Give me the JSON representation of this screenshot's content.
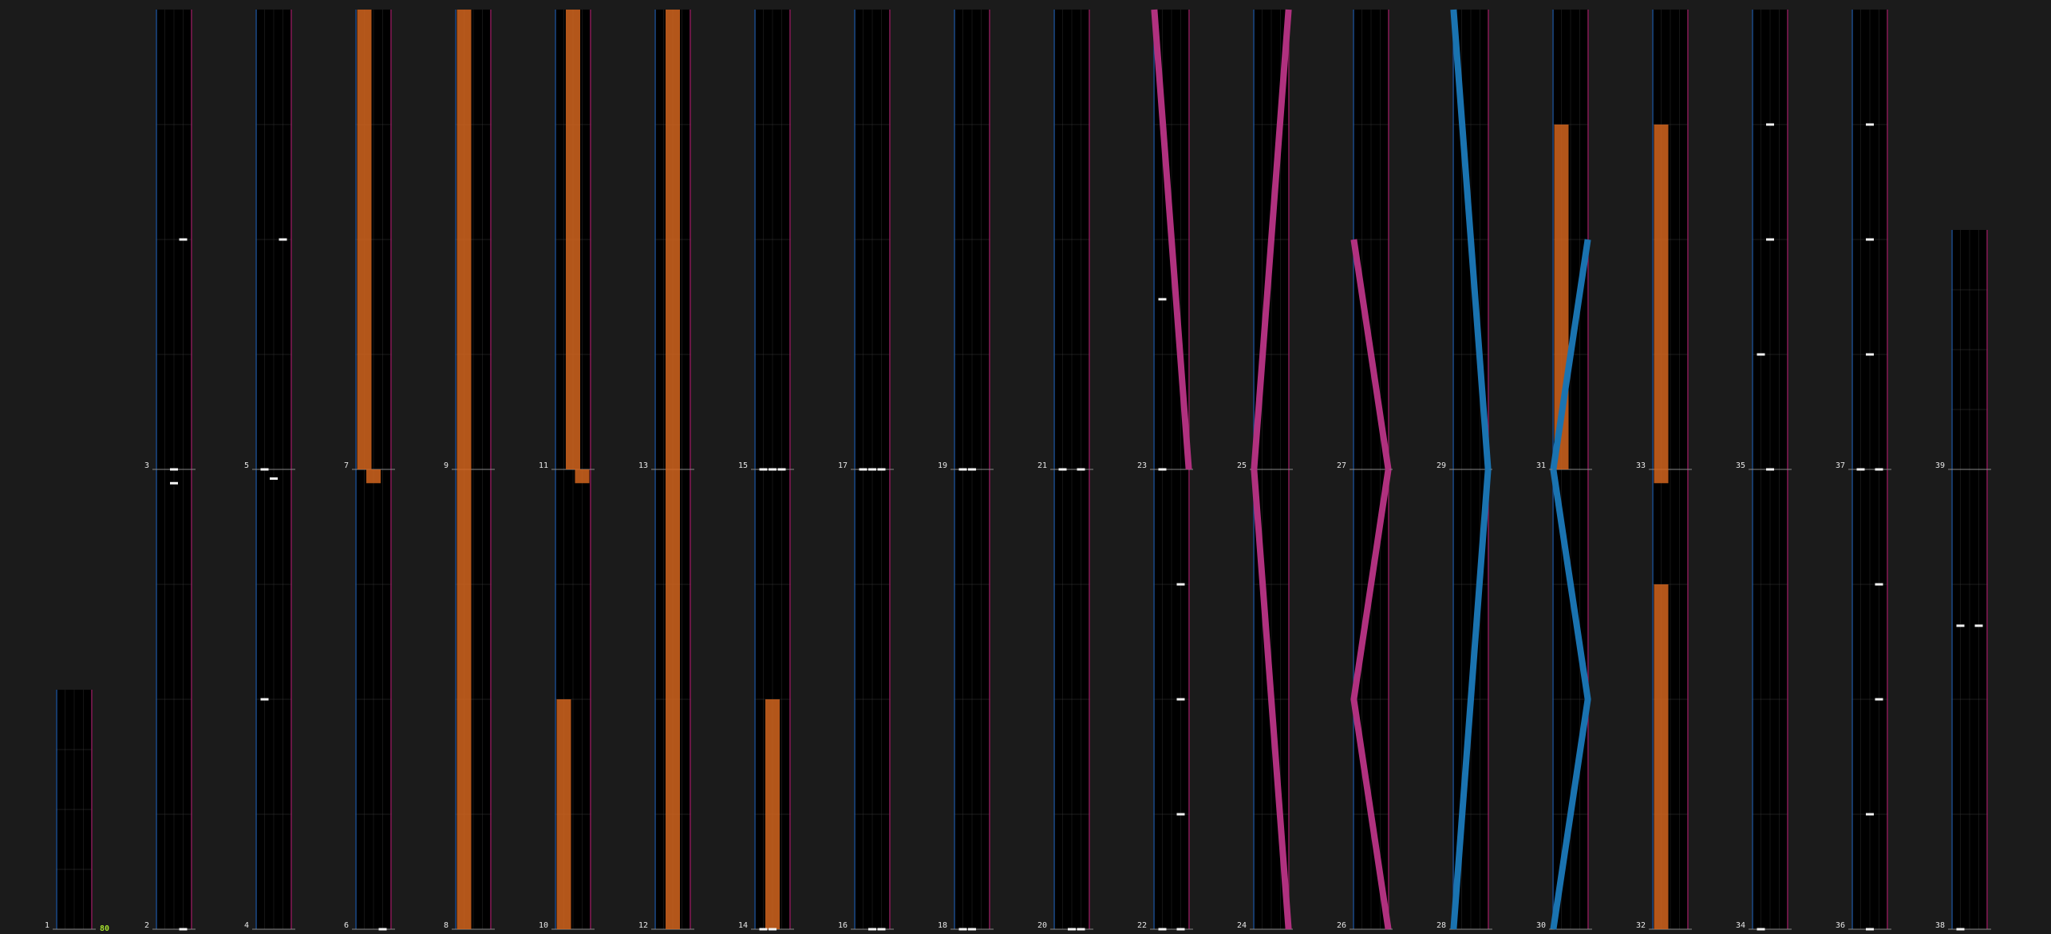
{
  "app": {
    "combo_count": "80"
  },
  "colors": {
    "background": "#1b1b1b",
    "lane_bg": "#000000",
    "grid": "#3a3a3a",
    "measure_line": "#8a8a8a",
    "left_border": "#1f4e8c",
    "right_border": "#8c1f5a",
    "note": "#f2f2f2",
    "long_note": "#d2651e",
    "slide_pink": "#b0317f",
    "slide_blue": "#1a73b0",
    "label": "#e6e6e6",
    "combo": "#a6e22e"
  },
  "measure_labels": [
    "1",
    "2",
    "3",
    "4",
    "5",
    "6",
    "7",
    "8",
    "9",
    "10",
    "11",
    "12",
    "13",
    "14",
    "15",
    "16",
    "17",
    "18",
    "19",
    "20",
    "21",
    "22",
    "23",
    "24",
    "25",
    "26",
    "27",
    "28",
    "29",
    "30",
    "31",
    "32",
    "33",
    "34",
    "35",
    "36",
    "37",
    "38",
    "39"
  ],
  "notes": [
    {
      "measure": 2,
      "lane": "mid",
      "pos": 0.97
    },
    {
      "measure": 2,
      "lane": "right",
      "pos": 0.0
    },
    {
      "measure": 3,
      "lane": "right",
      "pos": 0.5
    },
    {
      "measure": 3,
      "lane": "mid",
      "pos": 0.0
    },
    {
      "measure": 4,
      "lane": "left",
      "pos": 0.5
    },
    {
      "measure": 4,
      "lane": "mid",
      "pos": 0.98
    },
    {
      "measure": 5,
      "lane": "left",
      "pos": 0.0
    },
    {
      "measure": 5,
      "lane": "right",
      "pos": 0.5
    },
    {
      "measure": 6,
      "lane": "right",
      "pos": 0.0
    },
    {
      "measure": 14,
      "lane": "left",
      "pos": 0.0
    },
    {
      "measure": 14,
      "lane": "mid",
      "pos": 0.0
    },
    {
      "measure": 15,
      "lane": "left",
      "pos": 0.0
    },
    {
      "measure": 15,
      "lane": "mid",
      "pos": 0.0
    },
    {
      "measure": 15,
      "lane": "right",
      "pos": 0.0
    },
    {
      "measure": 16,
      "lane": "mid",
      "pos": 0.0
    },
    {
      "measure": 16,
      "lane": "right",
      "pos": 0.0
    },
    {
      "measure": 17,
      "lane": "left",
      "pos": 0.0
    },
    {
      "measure": 17,
      "lane": "mid",
      "pos": 0.0
    },
    {
      "measure": 17,
      "lane": "right",
      "pos": 0.0
    },
    {
      "measure": 18,
      "lane": "left",
      "pos": 0.0
    },
    {
      "measure": 18,
      "lane": "mid",
      "pos": 0.0
    },
    {
      "measure": 19,
      "lane": "left",
      "pos": 0.0
    },
    {
      "measure": 19,
      "lane": "mid",
      "pos": 0.0
    },
    {
      "measure": 20,
      "lane": "mid",
      "pos": 0.0
    },
    {
      "measure": 20,
      "lane": "right",
      "pos": 0.0
    },
    {
      "measure": 21,
      "lane": "left",
      "pos": 0.0
    },
    {
      "measure": 21,
      "lane": "right",
      "pos": 0.0
    },
    {
      "measure": 22,
      "lane": "left",
      "pos": 0.0
    },
    {
      "measure": 22,
      "lane": "right",
      "pos": 0.0
    },
    {
      "measure": 22,
      "lane": "right",
      "pos": 0.25
    },
    {
      "measure": 22,
      "lane": "right",
      "pos": 0.5
    },
    {
      "measure": 22,
      "lane": "right",
      "pos": 0.75
    },
    {
      "measure": 22,
      "lane": "left",
      "pos": 0.0
    },
    {
      "measure": 23,
      "lane": "left",
      "pos": 0.0
    },
    {
      "measure": 23,
      "lane": "left",
      "pos": 0.37
    },
    {
      "measure": 34,
      "lane": "left",
      "pos": 0.0
    },
    {
      "measure": 35,
      "lane": "left",
      "pos": 0.25
    },
    {
      "measure": 35,
      "lane": "mid",
      "pos": 0.5
    },
    {
      "measure": 35,
      "lane": "mid",
      "pos": 0.75
    },
    {
      "measure": 35,
      "lane": "mid",
      "pos": 0.0
    },
    {
      "measure": 36,
      "lane": "mid",
      "pos": 0.0
    },
    {
      "measure": 36,
      "lane": "mid",
      "pos": 0.25
    },
    {
      "measure": 36,
      "lane": "right",
      "pos": 0.5
    },
    {
      "measure": 36,
      "lane": "right",
      "pos": 0.75
    },
    {
      "measure": 36,
      "lane": "mid",
      "pos": 0.0
    },
    {
      "measure": 37,
      "lane": "mid",
      "pos": 0.25
    },
    {
      "measure": 37,
      "lane": "mid",
      "pos": 0.5
    },
    {
      "measure": 37,
      "lane": "mid",
      "pos": 0.75
    },
    {
      "measure": 37,
      "lane": "left",
      "pos": 0.0
    },
    {
      "measure": 37,
      "lane": "right",
      "pos": 0.0
    },
    {
      "measure": 38,
      "lane": "left",
      "pos": 0.0
    },
    {
      "measure": 38,
      "lane": "left",
      "pos": 0.66
    },
    {
      "measure": 38,
      "lane": "right",
      "pos": 0.66
    }
  ],
  "holds": [
    {
      "measure": 6,
      "lane": "mid",
      "from": 0.97,
      "to": 1.0
    },
    {
      "measure": 7,
      "lane": "left",
      "from": 0.0,
      "to": 1.0
    },
    {
      "measure": 8,
      "lane": "left",
      "from": 0.0,
      "to": 1.0
    },
    {
      "measure": 9,
      "lane": "left",
      "from": 0.0,
      "to": 1.0
    },
    {
      "measure": 10,
      "lane": "left",
      "from": 0.0,
      "to": 0.5
    },
    {
      "measure": 10,
      "lane": "right",
      "from": 0.97,
      "to": 1.0
    },
    {
      "measure": 11,
      "lane": "mid",
      "from": 0.0,
      "to": 1.0
    },
    {
      "measure": 12,
      "lane": "mid",
      "from": 0.0,
      "to": 1.0
    },
    {
      "measure": 13,
      "lane": "mid",
      "from": 0.0,
      "to": 1.0
    },
    {
      "measure": 14,
      "lane": "mid",
      "from": 0.0,
      "to": 0.5
    },
    {
      "measure": 31,
      "lane": "left",
      "from": 0.0,
      "to": 0.75
    },
    {
      "measure": 32,
      "lane": "left",
      "from": 0.0,
      "to": 0.75
    },
    {
      "measure": 32,
      "lane": "left",
      "from": 0.97,
      "to": 1.0
    },
    {
      "measure": 33,
      "lane": "left",
      "from": 0.0,
      "to": 0.75
    }
  ],
  "slides": [
    {
      "measure": 24,
      "color": "pink",
      "points": [
        [
          0.03,
          1.0
        ],
        [
          0.97,
          0.0
        ]
      ]
    },
    {
      "measure": 23,
      "color": "pink",
      "points": [
        [
          0.03,
          1.0
        ],
        [
          0.97,
          0.0
        ]
      ]
    },
    {
      "measure": 26,
      "color": "pink",
      "points": [
        [
          0.97,
          1.0
        ],
        [
          0.03,
          0.5
        ],
        [
          0.97,
          0.0
        ]
      ]
    },
    {
      "measure": 25,
      "color": "pink",
      "points": [
        [
          0.97,
          1.0
        ],
        [
          0.03,
          0.0
        ]
      ]
    },
    {
      "measure": 28,
      "color": "blue",
      "points": [
        [
          0.97,
          1.0
        ],
        [
          0.03,
          0.0
        ]
      ]
    },
    {
      "measure": 27,
      "color": "pink",
      "points": [
        [
          0.03,
          0.5
        ],
        [
          0.97,
          0.0
        ]
      ]
    },
    {
      "measure": 30,
      "color": "blue",
      "points": [
        [
          0.03,
          1.0
        ],
        [
          0.97,
          0.5
        ],
        [
          0.03,
          0.0
        ]
      ]
    },
    {
      "measure": 29,
      "color": "blue",
      "points": [
        [
          0.03,
          1.0
        ],
        [
          0.97,
          0.0
        ]
      ]
    },
    {
      "measure": 31,
      "color": "blue",
      "points": [
        [
          0.97,
          0.5
        ],
        [
          0.03,
          0.0
        ]
      ]
    }
  ]
}
